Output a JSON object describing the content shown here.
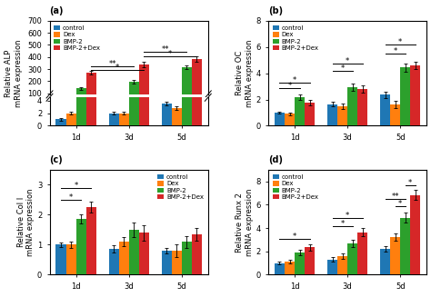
{
  "chart_data": [
    {
      "type": "bar",
      "title": "(a)",
      "ylabel": "Relative ALP\nmRNA expression",
      "categories": [
        "1d",
        "3d",
        "5d"
      ],
      "series": [
        {
          "name": "control",
          "values": [
            1.0,
            2.0,
            3.5
          ],
          "errors": [
            0.15,
            0.2,
            0.3
          ]
        },
        {
          "name": "Dex",
          "values": [
            2.0,
            2.0,
            2.8
          ],
          "errors": [
            0.2,
            0.25,
            0.35
          ]
        },
        {
          "name": "BMP-2",
          "values": [
            140,
            195,
            315
          ],
          "errors": [
            12,
            18,
            18
          ]
        },
        {
          "name": "BMP-2+Dex",
          "values": [
            270,
            335,
            385
          ],
          "errors": [
            18,
            22,
            22
          ]
        }
      ],
      "ylim": [
        0,
        700
      ],
      "yticks": [
        0,
        2,
        4,
        100,
        200,
        300,
        400,
        500,
        600,
        700
      ],
      "axis_break": [
        4.5,
        90
      ],
      "grid": false,
      "legend": "upper left",
      "annotations": [
        {
          "text": "**",
          "y": 325,
          "start": [
            "1d",
            "BMP-2+Dex"
          ],
          "end": [
            "3d",
            "BMP-2"
          ]
        },
        {
          "text": "*",
          "y": 290,
          "start": [
            "1d",
            "BMP-2+Dex"
          ],
          "end": [
            "3d",
            "BMP-2+Dex"
          ]
        },
        {
          "text": "**",
          "y": 440,
          "start": [
            "3d",
            "BMP-2+Dex"
          ],
          "end": [
            "5d",
            "BMP-2"
          ]
        },
        {
          "text": "*",
          "y": 405,
          "start": [
            "3d",
            "BMP-2+Dex"
          ],
          "end": [
            "5d",
            "BMP-2+Dex"
          ]
        }
      ]
    },
    {
      "type": "bar",
      "title": "(b)",
      "ylabel": "Relative OC\nmRNA expression",
      "categories": [
        "1d",
        "3d",
        "5d"
      ],
      "series": [
        {
          "name": "control",
          "values": [
            1.0,
            1.65,
            2.35
          ],
          "errors": [
            0.1,
            0.18,
            0.22
          ]
        },
        {
          "name": "Dex",
          "values": [
            0.9,
            1.5,
            1.65
          ],
          "errors": [
            0.12,
            0.22,
            0.28
          ]
        },
        {
          "name": "BMP-2",
          "values": [
            2.2,
            2.95,
            4.45
          ],
          "errors": [
            0.2,
            0.28,
            0.32
          ]
        },
        {
          "name": "BMP-2+Dex",
          "values": [
            1.75,
            2.8,
            4.6
          ],
          "errors": [
            0.22,
            0.28,
            0.28
          ]
        }
      ],
      "ylim": [
        0,
        8
      ],
      "yticks": [
        0,
        2,
        4,
        6,
        8
      ],
      "grid": false,
      "legend": "upper left",
      "annotations": [
        {
          "text": "*",
          "y": 2.85,
          "start": [
            "1d",
            "control"
          ],
          "end": [
            "1d",
            "BMP-2"
          ]
        },
        {
          "text": "*",
          "y": 3.25,
          "start": [
            "1d",
            "control"
          ],
          "end": [
            "1d",
            "BMP-2+Dex"
          ]
        },
        {
          "text": "*",
          "y": 4.2,
          "start": [
            "3d",
            "control"
          ],
          "end": [
            "3d",
            "BMP-2"
          ]
        },
        {
          "text": "*",
          "y": 4.75,
          "start": [
            "3d",
            "control"
          ],
          "end": [
            "3d",
            "BMP-2+Dex"
          ]
        },
        {
          "text": "*",
          "y": 5.5,
          "start": [
            "5d",
            "control"
          ],
          "end": [
            "5d",
            "BMP-2"
          ]
        },
        {
          "text": "*",
          "y": 6.2,
          "start": [
            "5d",
            "control"
          ],
          "end": [
            "5d",
            "BMP-2+Dex"
          ]
        }
      ]
    },
    {
      "type": "bar",
      "title": "(c)",
      "ylabel": "Relative Col I\nmRNA expression",
      "categories": [
        "1d",
        "3d",
        "5d"
      ],
      "series": [
        {
          "name": "control",
          "values": [
            1.0,
            0.85,
            0.8
          ],
          "errors": [
            0.08,
            0.12,
            0.1
          ]
        },
        {
          "name": "Dex",
          "values": [
            1.0,
            1.1,
            0.8
          ],
          "errors": [
            0.1,
            0.15,
            0.2
          ]
        },
        {
          "name": "BMP-2",
          "values": [
            1.85,
            1.5,
            1.1
          ],
          "errors": [
            0.15,
            0.25,
            0.2
          ]
        },
        {
          "name": "BMP-2+Dex",
          "values": [
            2.25,
            1.4,
            1.35
          ],
          "errors": [
            0.18,
            0.25,
            0.2
          ]
        }
      ],
      "ylim": [
        0,
        3.5
      ],
      "yticks": [
        0,
        1,
        2,
        3
      ],
      "grid": false,
      "legend": "upper right",
      "annotations": [
        {
          "text": "*",
          "y": 2.5,
          "start": [
            "1d",
            "control"
          ],
          "end": [
            "1d",
            "BMP-2"
          ]
        },
        {
          "text": "*",
          "y": 2.9,
          "start": [
            "1d",
            "control"
          ],
          "end": [
            "1d",
            "BMP-2+Dex"
          ]
        }
      ]
    },
    {
      "type": "bar",
      "title": "(d)",
      "ylabel": "Relative Runx 2\nmRNA expression",
      "categories": [
        "1d",
        "3d",
        "5d"
      ],
      "series": [
        {
          "name": "control",
          "values": [
            1.0,
            1.3,
            2.2
          ],
          "errors": [
            0.12,
            0.18,
            0.25
          ]
        },
        {
          "name": "Dex",
          "values": [
            1.1,
            1.6,
            3.25
          ],
          "errors": [
            0.15,
            0.22,
            0.3
          ]
        },
        {
          "name": "BMP-2",
          "values": [
            1.9,
            2.7,
            4.9
          ],
          "errors": [
            0.22,
            0.32,
            0.4
          ]
        },
        {
          "name": "BMP-2+Dex",
          "values": [
            2.35,
            3.65,
            6.85
          ],
          "errors": [
            0.25,
            0.35,
            0.45
          ]
        }
      ],
      "ylim": [
        0,
        9
      ],
      "yticks": [
        0,
        2,
        4,
        6,
        8
      ],
      "grid": false,
      "legend": "upper left",
      "annotations": [
        {
          "text": "*",
          "y": 3.1,
          "start": [
            "1d",
            "control"
          ],
          "end": [
            "1d",
            "BMP-2+Dex"
          ]
        },
        {
          "text": "*",
          "y": 4.2,
          "start": [
            "3d",
            "control"
          ],
          "end": [
            "3d",
            "BMP-2"
          ]
        },
        {
          "text": "*",
          "y": 4.85,
          "start": [
            "3d",
            "control"
          ],
          "end": [
            "3d",
            "BMP-2+Dex"
          ]
        },
        {
          "text": "**",
          "y": 6.5,
          "start": [
            "5d",
            "control"
          ],
          "end": [
            "5d",
            "BMP-2"
          ]
        },
        {
          "text": "*",
          "y": 5.9,
          "start": [
            "5d",
            "Dex"
          ],
          "end": [
            "5d",
            "BMP-2"
          ]
        },
        {
          "text": "*",
          "y": 7.7,
          "start": [
            "5d",
            "BMP-2"
          ],
          "end": [
            "5d",
            "BMP-2+Dex"
          ]
        }
      ]
    }
  ]
}
